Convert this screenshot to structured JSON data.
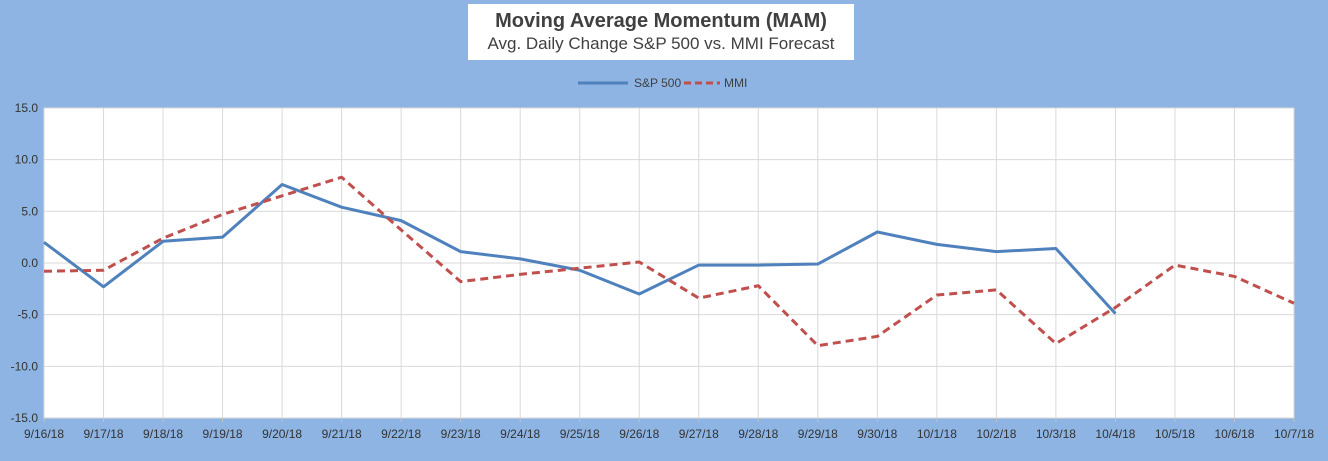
{
  "chart_data": {
    "type": "line",
    "title": "Moving Average Momentum (MAM)",
    "subtitle": "Avg. Daily Change S&P 500 vs. MMI Forecast",
    "categories": [
      "9/16/18",
      "9/17/18",
      "9/18/18",
      "9/19/18",
      "9/20/18",
      "9/21/18",
      "9/22/18",
      "9/23/18",
      "9/24/18",
      "9/25/18",
      "9/26/18",
      "9/27/18",
      "9/28/18",
      "9/29/18",
      "9/30/18",
      "10/1/18",
      "10/2/18",
      "10/3/18",
      "10/4/18",
      "10/5/18",
      "10/6/18",
      "10/7/18"
    ],
    "series": [
      {
        "name": "S&P 500",
        "color": "#4f81bd",
        "dash": "solid",
        "values": [
          2.0,
          -2.3,
          2.1,
          2.5,
          7.6,
          5.4,
          4.1,
          1.1,
          0.4,
          -0.7,
          -3.0,
          -0.2,
          -0.2,
          -0.1,
          3.0,
          1.8,
          1.1,
          1.4,
          -4.9,
          null,
          null,
          null
        ]
      },
      {
        "name": "MMI",
        "color": "#c0504d",
        "dash": "dashed",
        "values": [
          -0.8,
          -0.7,
          2.4,
          4.7,
          6.5,
          8.3,
          3.2,
          -1.8,
          -1.1,
          -0.5,
          0.1,
          -3.4,
          -2.2,
          -8.0,
          -7.1,
          -3.1,
          -2.6,
          -7.8,
          -4.3,
          -0.2,
          -1.3,
          -3.9
        ]
      }
    ],
    "ylim": [
      -15.0,
      15.0
    ],
    "yticks": [
      "15.0",
      "10.0",
      "5.0",
      "0.0",
      "-5.0",
      "-10.0",
      "-15.0"
    ],
    "ytick_values": [
      15,
      10,
      5,
      0,
      -5,
      -10,
      -15
    ],
    "xlabel": "",
    "ylabel": "",
    "grid": true,
    "legend_position": "top"
  }
}
